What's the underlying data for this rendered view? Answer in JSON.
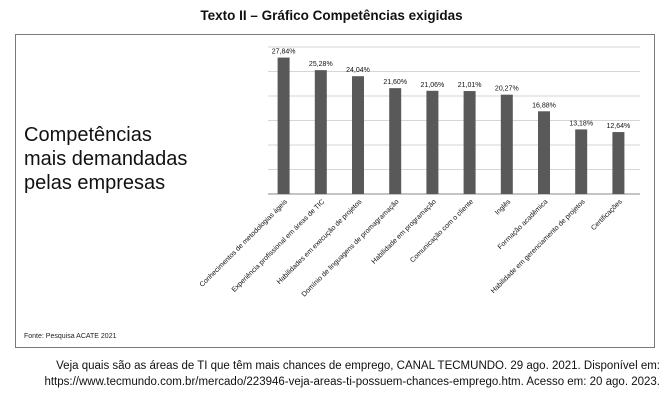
{
  "header": {
    "title": "Texto II – Gráfico Competências exigidas"
  },
  "headline": {
    "lines": [
      "Competências",
      "mais demandadas",
      "pelas empresas"
    ]
  },
  "source_note": "Fonte: Pesquisa ACATE 2021",
  "caption": {
    "line1": "Veja quais são as áreas de TI que têm mais chances de emprego, CANAL TECMUNDO. 29 ago. 2021. Disponível em:",
    "line2": "https://www.tecmundo.com.br/mercado/223946-veja-areas-ti-possuem-chances-emprego.htm. Acesso em: 20 ago. 2023."
  },
  "colors": {
    "bar": "#595959",
    "grid": "#c8c8c8",
    "border": "#7a7a7a"
  },
  "chart_data": {
    "type": "bar",
    "title": "",
    "xlabel": "",
    "ylabel": "",
    "ylim": [
      0,
      30
    ],
    "grid": true,
    "categories": [
      "Conhecimentos de metodologias ágeis",
      "Experiência profissional em áreas de TIC",
      "Habilidades em execução de projetos",
      "Domínio de linguagens de promagramação",
      "Habilidade em programação",
      "Comunicação com o cliente",
      "Inglês",
      "Formação acadêmica",
      "Habilidade em gerenciamento de projetos",
      "Certificações"
    ],
    "values": [
      27.84,
      25.28,
      24.04,
      21.6,
      21.06,
      21.01,
      20.27,
      16.88,
      13.18,
      12.64
    ],
    "value_labels": [
      "27,84%",
      "25,28%",
      "24,04%",
      "21,60%",
      "21,06%",
      "21,01%",
      "20,27%",
      "16,88%",
      "13,18%",
      "12,64%"
    ]
  }
}
